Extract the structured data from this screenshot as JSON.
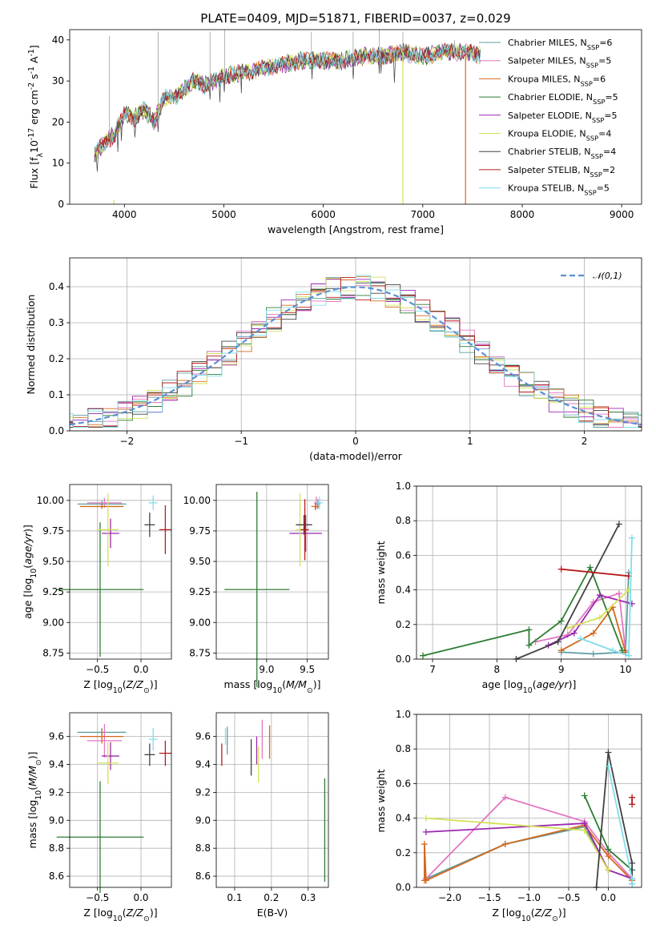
{
  "chart_data": [
    {
      "id": "spectrum",
      "type": "line",
      "title": "PLATE=0409, MJD=51871, FIBERID=0037, z=0.029",
      "xlabel": "wavelength [Angstrom, rest frame]",
      "ylabel": "Flux [f$_\\lambda$10$^{-17}$ erg cm$^{-2}$ s$^{-1}$ A$^{-1}$]",
      "xlim": [
        3450,
        9200
      ],
      "ylim": [
        0,
        42.5
      ],
      "xticks": [
        4000,
        5000,
        6000,
        7000,
        8000,
        9000
      ],
      "yticks": [
        0,
        10,
        20,
        30,
        40
      ],
      "grid": false,
      "legend_position": "right",
      "legend": [
        {
          "label": "Chabrier MILES, N$_{SSP}$=6",
          "color": "#5f9ea0"
        },
        {
          "label": "Salpeter MILES, N$_{SSP}$=5",
          "color": "#e377c2"
        },
        {
          "label": "Kroupa MILES, N$_{SSP}$=6",
          "color": "#d2691e"
        },
        {
          "label": "Chabrier ELODIE, N$_{SSP}$=5",
          "color": "#2e7d32"
        },
        {
          "label": "Salpeter ELODIE, N$_{SSP}$=5",
          "color": "#9c27b0"
        },
        {
          "label": "Kroupa ELODIE, N$_{SSP}$=4",
          "color": "#d4e157"
        },
        {
          "label": "Chabrier STELIB, N$_{SSP}$=4",
          "color": "#424242"
        },
        {
          "label": "Salpeter STELIB, N$_{SSP}$=2",
          "color": "#b71c1c"
        },
        {
          "label": "Kroupa STELIB, N$_{SSP}$=5",
          "color": "#80deea"
        }
      ],
      "continuum": {
        "x": [
          3700,
          3800,
          3900,
          4000,
          4100,
          4200,
          4300,
          4400,
          4500,
          4600,
          4700,
          4800,
          4900,
          5000,
          5200,
          5400,
          5600,
          5800,
          6000,
          6200,
          6400,
          6600,
          6800,
          7000,
          7200,
          7400,
          7500,
          7600
        ],
        "y": [
          12,
          15,
          17,
          22,
          21,
          23,
          20,
          26,
          26,
          28,
          30,
          29,
          30,
          31,
          32,
          33,
          34,
          35,
          35,
          35,
          36,
          36,
          37,
          36,
          37,
          37,
          37,
          36
        ]
      },
      "drop_lines": [
        {
          "x": 3895,
          "y": 1,
          "series": "Kroupa ELODIE"
        },
        {
          "x": 6800,
          "y": 37,
          "series": "Kroupa ELODIE"
        },
        {
          "x": 7430,
          "y": 37,
          "series": "Kroupa MILES"
        }
      ]
    },
    {
      "id": "residuals",
      "type": "step",
      "xlabel": "(data-model)/error",
      "ylabel": "Normed distribution",
      "xlim": [
        -2.5,
        2.5
      ],
      "ylim": [
        0,
        0.48
      ],
      "xticks": [
        -2,
        -1,
        0,
        1,
        2
      ],
      "yticks": [
        0.0,
        0.1,
        0.2,
        0.3,
        0.4
      ],
      "grid": true,
      "legend_position": "top-right",
      "legend_label": "$\\mathcal{N}(0,1)$",
      "normal_color": "#5b8fd6"
    },
    {
      "id": "age_vs_Z",
      "type": "errorbar",
      "xlabel": "Z [log$_{10}$($Z/Z_\\odot$)]",
      "ylabel": "age  [log$_{10}$($age/yr$)]",
      "xlim": [
        -0.82,
        0.35
      ],
      "ylim": [
        8.7,
        10.13
      ],
      "xticks": [
        -0.5,
        0.0
      ],
      "yticks": [
        8.75,
        9.0,
        9.25,
        9.5,
        9.75,
        10.0
      ],
      "grid": true,
      "points": [
        {
          "x": -0.45,
          "y": 9.97,
          "xerr": 0.28,
          "yerr": 0.03,
          "color": "#5f9ea0"
        },
        {
          "x": -0.42,
          "y": 9.98,
          "xerr": 0.2,
          "yerr": 0.04,
          "color": "#e377c2"
        },
        {
          "x": -0.45,
          "y": 9.95,
          "xerr": 0.25,
          "yerr": 0.02,
          "color": "#d2691e"
        },
        {
          "x": -0.47,
          "y": 9.27,
          "xerr": 0.5,
          "yerr": 0.55,
          "color": "#2e7d32"
        },
        {
          "x": -0.35,
          "y": 9.73,
          "xerr": 0.1,
          "yerr": 0.12,
          "color": "#9c27b0"
        },
        {
          "x": -0.38,
          "y": 9.76,
          "xerr": 0.12,
          "yerr": 0.3,
          "color": "#d4e157"
        },
        {
          "x": 0.1,
          "y": 9.8,
          "xerr": 0.06,
          "yerr": 0.1,
          "color": "#424242"
        },
        {
          "x": 0.28,
          "y": 9.76,
          "xerr": 0.07,
          "yerr": 0.2,
          "color": "#b71c1c"
        },
        {
          "x": 0.14,
          "y": 9.98,
          "xerr": 0.05,
          "yerr": 0.06,
          "color": "#80deea"
        }
      ]
    },
    {
      "id": "age_vs_mass",
      "type": "errorbar",
      "xlabel": "mass [log$_{10}$($M/M_\\odot$)]",
      "ylabel": "",
      "xlim": [
        8.38,
        9.76
      ],
      "ylim": [
        8.7,
        10.13
      ],
      "xticks": [
        9.0,
        9.5
      ],
      "yticks": [
        8.75,
        9.0,
        9.25,
        9.5,
        9.75,
        10.0
      ],
      "grid": true,
      "points": [
        {
          "x": 9.63,
          "y": 9.97,
          "xerr": 0.03,
          "yerr": 0.04,
          "color": "#5f9ea0"
        },
        {
          "x": 9.61,
          "y": 9.98,
          "xerr": 0.03,
          "yerr": 0.05,
          "color": "#e377c2"
        },
        {
          "x": 9.6,
          "y": 9.95,
          "xerr": 0.05,
          "yerr": 0.03,
          "color": "#d2691e"
        },
        {
          "x": 8.88,
          "y": 9.27,
          "xerr": 0.4,
          "yerr": 0.8,
          "color": "#2e7d32"
        },
        {
          "x": 9.48,
          "y": 9.73,
          "xerr": 0.2,
          "yerr": 0.15,
          "color": "#9c27b0"
        },
        {
          "x": 9.41,
          "y": 9.76,
          "xerr": 0.05,
          "yerr": 0.3,
          "color": "#d4e157"
        },
        {
          "x": 9.46,
          "y": 9.8,
          "xerr": 0.1,
          "yerr": 0.08,
          "color": "#424242"
        },
        {
          "x": 9.47,
          "y": 9.76,
          "xerr": 0.05,
          "yerr": 0.25,
          "color": "#b71c1c"
        },
        {
          "x": 9.65,
          "y": 9.98,
          "xerr": 0.04,
          "yerr": 0.05,
          "color": "#80deea"
        }
      ]
    },
    {
      "id": "weight_vs_age",
      "type": "line",
      "xlabel": "age  [log$_{10}$($age/yr$)]",
      "ylabel": "mass weight",
      "xlim": [
        6.75,
        10.25
      ],
      "ylim": [
        0,
        1
      ],
      "xticks": [
        7,
        8,
        9,
        10
      ],
      "yticks": [
        0.0,
        0.2,
        0.4,
        0.6,
        0.8,
        1.0
      ],
      "grid": true,
      "series": [
        {
          "name": "",
          "color": "#5f9ea0",
          "x": [
            9.0,
            9.5,
            10.0,
            10.05
          ],
          "y": [
            0.04,
            0.03,
            0.04,
            0.5
          ]
        },
        {
          "name": "",
          "color": "#e377c2",
          "x": [
            8.6,
            9.1,
            9.5,
            9.9,
            10.0
          ],
          "y": [
            0.1,
            0.14,
            0.33,
            0.38,
            0.05
          ]
        },
        {
          "name": "",
          "color": "#d2691e",
          "x": [
            9.0,
            9.5,
            9.8,
            10.0
          ],
          "y": [
            0.05,
            0.15,
            0.3,
            0.04
          ]
        },
        {
          "name": "",
          "color": "#2e7d32",
          "x": [
            6.85,
            8.5,
            8.5,
            9.0,
            9.45,
            9.95
          ],
          "y": [
            0.02,
            0.17,
            0.08,
            0.22,
            0.53,
            0.05
          ]
        },
        {
          "name": "",
          "color": "#9c27b0",
          "x": [
            8.8,
            9.2,
            9.6,
            10.1
          ],
          "y": [
            0.08,
            0.15,
            0.37,
            0.32
          ]
        },
        {
          "name": "",
          "color": "#d4e157",
          "x": [
            9.1,
            9.6,
            10.05
          ],
          "y": [
            0.18,
            0.24,
            0.4
          ]
        },
        {
          "name": "",
          "color": "#424242",
          "x": [
            8.3,
            8.95,
            9.9
          ],
          "y": [
            0.0,
            0.1,
            0.78
          ]
        },
        {
          "name": "",
          "color": "#b71c1c",
          "x": [
            9.0,
            10.05
          ],
          "y": [
            0.52,
            0.48
          ]
        },
        {
          "name": "",
          "color": "#80deea",
          "x": [
            9.3,
            9.8,
            10.05,
            10.1
          ],
          "y": [
            0.12,
            0.05,
            0.02,
            0.7
          ]
        }
      ]
    },
    {
      "id": "mass_vs_Z",
      "type": "errorbar",
      "xlabel": "Z [log$_{10}$($Z/Z_\\odot$)]",
      "ylabel": "mass [log$_{10}$($M/M_\\odot$)]",
      "xlim": [
        -0.82,
        0.35
      ],
      "ylim": [
        8.52,
        9.77
      ],
      "xticks": [
        -0.5,
        0.0
      ],
      "yticks": [
        8.6,
        8.8,
        9.0,
        9.2,
        9.4,
        9.6
      ],
      "grid": true,
      "points": [
        {
          "x": -0.45,
          "y": 9.63,
          "xerr": 0.28,
          "yerr": 0.03,
          "color": "#5f9ea0"
        },
        {
          "x": -0.42,
          "y": 9.57,
          "xerr": 0.2,
          "yerr": 0.12,
          "color": "#e377c2"
        },
        {
          "x": -0.45,
          "y": 9.6,
          "xerr": 0.25,
          "yerr": 0.05,
          "color": "#d2691e"
        },
        {
          "x": -0.47,
          "y": 8.88,
          "xerr": 0.5,
          "yerr": 0.4,
          "color": "#2e7d32"
        },
        {
          "x": -0.35,
          "y": 9.46,
          "xerr": 0.1,
          "yerr": 0.1,
          "color": "#9c27b0"
        },
        {
          "x": -0.38,
          "y": 9.41,
          "xerr": 0.12,
          "yerr": 0.15,
          "color": "#d4e157"
        },
        {
          "x": 0.1,
          "y": 9.47,
          "xerr": 0.06,
          "yerr": 0.08,
          "color": "#424242"
        },
        {
          "x": 0.28,
          "y": 9.48,
          "xerr": 0.07,
          "yerr": 0.09,
          "color": "#b71c1c"
        },
        {
          "x": 0.14,
          "y": 9.58,
          "xerr": 0.05,
          "yerr": 0.08,
          "color": "#80deea"
        }
      ]
    },
    {
      "id": "mass_vs_ebv",
      "type": "errorbar",
      "xlabel": "E(B-V)",
      "ylabel": "",
      "xlim": [
        0.05,
        0.355
      ],
      "ylim": [
        8.52,
        9.77
      ],
      "xticks": [
        0.1,
        0.2,
        0.3
      ],
      "yticks": [
        8.6,
        8.8,
        9.0,
        9.2,
        9.4,
        9.6
      ],
      "grid": true,
      "points": [
        {
          "x": 0.08,
          "y": 9.57,
          "xerr": 0,
          "yerr": 0.1,
          "color": "#5f9ea0"
        },
        {
          "x": 0.175,
          "y": 9.58,
          "xerr": 0,
          "yerr": 0.14,
          "color": "#e377c2"
        },
        {
          "x": 0.195,
          "y": 9.56,
          "xerr": 0,
          "yerr": 0.12,
          "color": "#d2691e"
        },
        {
          "x": 0.345,
          "y": 8.93,
          "xerr": 0,
          "yerr": 0.37,
          "color": "#2e7d32"
        },
        {
          "x": 0.16,
          "y": 9.5,
          "xerr": 0,
          "yerr": 0.1,
          "color": "#9c27b0"
        },
        {
          "x": 0.165,
          "y": 9.4,
          "xerr": 0,
          "yerr": 0.13,
          "color": "#d4e157"
        },
        {
          "x": 0.145,
          "y": 9.45,
          "xerr": 0,
          "yerr": 0.13,
          "color": "#424242"
        },
        {
          "x": 0.065,
          "y": 9.47,
          "xerr": 0,
          "yerr": 0.08,
          "color": "#b71c1c"
        },
        {
          "x": 0.075,
          "y": 9.6,
          "xerr": 0,
          "yerr": 0.06,
          "color": "#80deea"
        }
      ]
    },
    {
      "id": "weight_vs_Z",
      "type": "line",
      "xlabel": "Z [log$_{10}$($Z/Z_\\odot$)]",
      "ylabel": "mass weight",
      "xlim": [
        -2.42,
        0.42
      ],
      "ylim": [
        0,
        1
      ],
      "xticks": [
        -2.0,
        -1.5,
        -1.0,
        -0.5,
        0.0
      ],
      "yticks": [
        0.0,
        0.2,
        0.4,
        0.6,
        0.8,
        1.0
      ],
      "grid": true,
      "series": [
        {
          "name": "",
          "color": "#5f9ea0",
          "x": [
            -2.3,
            -1.3,
            -0.3,
            0.0,
            0.3
          ],
          "y": [
            0.05,
            0.25,
            0.35,
            0.1,
            0.05
          ]
        },
        {
          "name": "",
          "color": "#e377c2",
          "x": [
            -2.3,
            -1.3,
            -0.3,
            0.0,
            0.3
          ],
          "y": [
            0.05,
            0.52,
            0.38,
            0.2,
            0.05
          ]
        },
        {
          "name": "",
          "color": "#d2691e",
          "x": [
            -2.32,
            -2.32,
            -2.3,
            -1.3,
            -0.3,
            0.0,
            0.3
          ],
          "y": [
            0.04,
            0.25,
            0.04,
            0.25,
            0.36,
            0.18,
            0.04
          ]
        },
        {
          "name": "",
          "color": "#2e7d32",
          "x": [
            -0.3,
            0.0,
            0.3
          ],
          "y": [
            0.53,
            0.22,
            0.1
          ]
        },
        {
          "name": "",
          "color": "#9c27b0",
          "x": [
            -2.3,
            -0.3,
            0.0,
            0.3
          ],
          "y": [
            0.32,
            0.37,
            0.1,
            0.05
          ]
        },
        {
          "name": "",
          "color": "#d4e157",
          "x": [
            -2.3,
            -0.3,
            0.0
          ],
          "y": [
            0.4,
            0.33,
            0.1
          ]
        },
        {
          "name": "",
          "color": "#424242",
          "x": [
            -0.15,
            0.0,
            0.3,
            0.3
          ],
          "y": [
            0.0,
            0.78,
            0.14,
            0.02
          ]
        },
        {
          "name": "",
          "color": "#b71c1c",
          "x": [
            0.3,
            0.3
          ],
          "y": [
            0.48,
            0.52
          ]
        },
        {
          "name": "",
          "color": "#80deea",
          "x": [
            0.0,
            0.3,
            0.3
          ],
          "y": [
            0.7,
            0.05,
            0.02
          ]
        }
      ]
    }
  ]
}
